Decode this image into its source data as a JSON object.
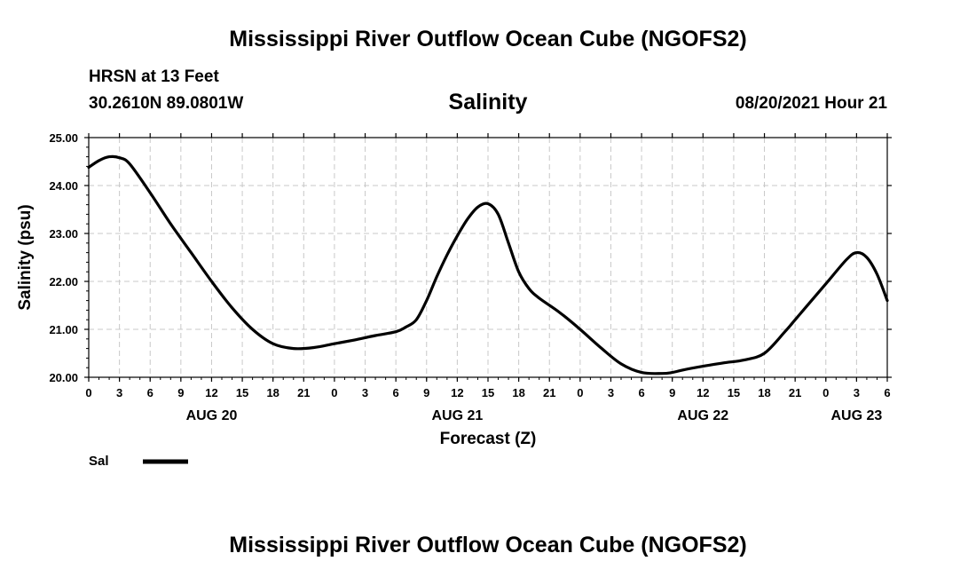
{
  "header": {
    "title": "Mississippi River Outflow Ocean Cube (NGOFS2)",
    "station": "HRSN at 13 Feet",
    "coords": "30.2610N  89.0801W",
    "datetime": "08/20/2021 Hour 21",
    "footer_title": "Mississippi River Outflow Ocean Cube (NGOFS2)"
  },
  "chart_data": {
    "type": "line",
    "title": "Salinity",
    "xlabel": "Forecast (Z)",
    "ylabel": "Salinity (psu)",
    "x_unit": "hours from AUG 20 00Z",
    "xlim": [
      0,
      78
    ],
    "ylim": [
      20.0,
      25.0
    ],
    "y_ticks": [
      "20.00",
      "21.00",
      "22.00",
      "23.00",
      "24.00",
      "25.00"
    ],
    "x_tick_labels": [
      "0",
      "3",
      "6",
      "9",
      "12",
      "15",
      "18",
      "21",
      "0",
      "3",
      "6",
      "9",
      "12",
      "15",
      "18",
      "21",
      "0",
      "3",
      "6",
      "9",
      "12",
      "15",
      "18",
      "21",
      "0",
      "3",
      "6"
    ],
    "day_labels": [
      {
        "label": "AUG 20",
        "hour": 12
      },
      {
        "label": "AUG 21",
        "hour": 36
      },
      {
        "label": "AUG 22",
        "hour": 60
      },
      {
        "label": "AUG 23",
        "hour": 75
      }
    ],
    "grid": true,
    "legend": "bottom-left",
    "series": [
      {
        "name": "Sal",
        "color": "#000000",
        "x": [
          0,
          1,
          2,
          3,
          4,
          6,
          8,
          10,
          12,
          14,
          16,
          18,
          20,
          22,
          24,
          26,
          28,
          30,
          31,
          32,
          33,
          34,
          35,
          36,
          37,
          38,
          39,
          40,
          41,
          42,
          43,
          44,
          46,
          48,
          50,
          52,
          54,
          56,
          57,
          58,
          60,
          62,
          64,
          66,
          68,
          69,
          70,
          72,
          74,
          75,
          76,
          77,
          78
        ],
        "y": [
          24.38,
          24.52,
          24.6,
          24.58,
          24.45,
          23.85,
          23.2,
          22.6,
          22.0,
          21.45,
          21.0,
          20.7,
          20.6,
          20.62,
          20.7,
          20.78,
          20.87,
          20.95,
          21.05,
          21.2,
          21.6,
          22.1,
          22.55,
          22.95,
          23.3,
          23.55,
          23.62,
          23.4,
          22.8,
          22.2,
          21.85,
          21.65,
          21.35,
          21.0,
          20.62,
          20.28,
          20.1,
          20.08,
          20.1,
          20.15,
          20.23,
          20.3,
          20.36,
          20.5,
          20.95,
          21.2,
          21.45,
          21.95,
          22.45,
          22.6,
          22.5,
          22.15,
          21.6
        ]
      }
    ]
  }
}
